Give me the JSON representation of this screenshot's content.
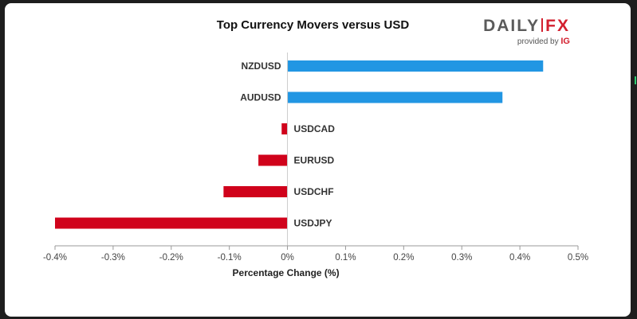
{
  "chart_data": {
    "type": "bar",
    "orientation": "horizontal",
    "title": "Top Currency Movers versus USD",
    "xlabel": "Percentage Change (%)",
    "categories": [
      "NZDUSD",
      "AUDUSD",
      "USDCAD",
      "EURUSD",
      "USDCHF",
      "USDJPY"
    ],
    "values": [
      0.44,
      0.37,
      -0.01,
      -0.05,
      -0.11,
      -0.4
    ],
    "xlim": [
      -0.4,
      0.5
    ],
    "xticks": [
      -0.4,
      -0.3,
      -0.2,
      -0.1,
      0,
      0.1,
      0.2,
      0.3,
      0.4,
      0.5
    ],
    "xtick_labels": [
      "-0.4%",
      "-0.3%",
      "-0.2%",
      "-0.1%",
      "0%",
      "0.1%",
      "0.2%",
      "0.3%",
      "0.4%",
      "0.5%"
    ],
    "grid": false,
    "colors": {
      "positive": "#2196e3",
      "negative": "#d0021b"
    }
  },
  "branding": {
    "logo_left": "DAILY",
    "logo_right": "FX",
    "provided_by": "provided by",
    "provider": "IG"
  }
}
